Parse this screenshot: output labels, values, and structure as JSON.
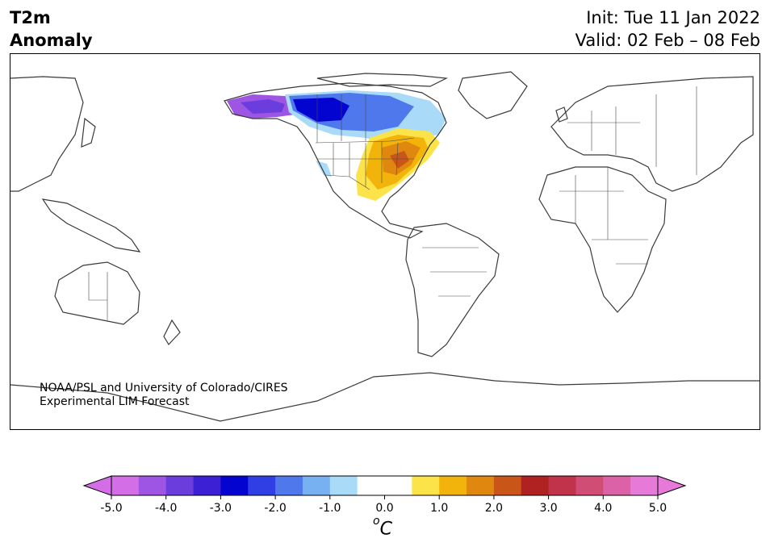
{
  "header": {
    "variable": "T2m",
    "quantity": "Anomaly",
    "init": "Init: Tue 11 Jan 2022",
    "valid": "Valid: 02 Feb – 08 Feb"
  },
  "credit": {
    "line1": "NOAA/PSL and University of Colorado/CIRES",
    "line2": "Experimental LIM Forecast"
  },
  "colorbar": {
    "unit_base": "C",
    "unit_super": "o",
    "ticks": [
      "-5.0",
      "-4.0",
      "-3.0",
      "-2.0",
      "-1.0",
      "0.0",
      "1.0",
      "2.0",
      "3.0",
      "4.0",
      "5.0"
    ],
    "colors": [
      "#d36ee7",
      "#9e55e3",
      "#6c3ddd",
      "#3b20d4",
      "#0404d0",
      "#2f3fe3",
      "#4f78ec",
      "#77b1f2",
      "#a9daf8",
      "#ffffff",
      "#ffffff",
      "#fde34a",
      "#f2b40a",
      "#e0870f",
      "#c95618",
      "#b02121",
      "#c0334a",
      "#d04d76",
      "#dc62a8",
      "#e77ad8"
    ],
    "under_color": "#d36ee7",
    "over_color": "#e77ad8"
  },
  "anomaly_regions": [
    {
      "name": "alaska-cold",
      "color": "#9e55e3"
    },
    {
      "name": "canada-cold",
      "color": "#0404d0"
    },
    {
      "name": "eastern-us-warm",
      "color": "#e0870f"
    }
  ]
}
